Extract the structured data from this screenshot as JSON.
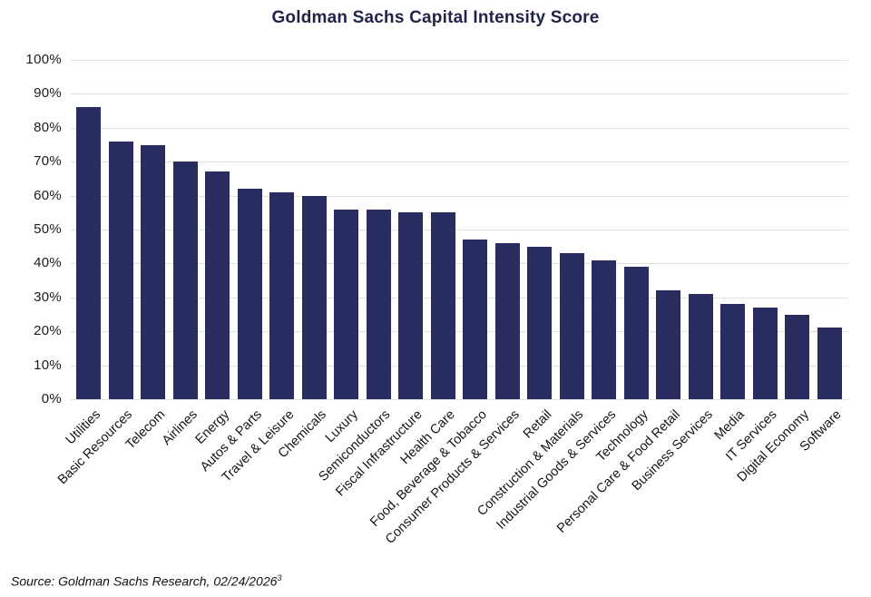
{
  "title": "Goldman Sachs Capital Intensity Score",
  "source": {
    "text": "Source: Goldman Sachs Research, 02/24/2026",
    "superscript": "3"
  },
  "colors": {
    "bar": "#282c5e",
    "title": "#1f2448",
    "grid": "#e2e2e5",
    "axis_text": "#1c1c1c"
  },
  "chart_data": {
    "type": "bar",
    "title": "Goldman Sachs Capital Intensity Score",
    "categories": [
      "Utilities",
      "Basic Resources",
      "Telecom",
      "Airlines",
      "Energy",
      "Autos & Parts",
      "Travel & Leisure",
      "Chemicals",
      "Luxury",
      "Semiconductors",
      "Fiscal Infrastructure",
      "Health Care",
      "Food, Beverage & Tobacco",
      "Consumer Products & Services",
      "Retail",
      "Construction & Materials",
      "Industrial Goods & Services",
      "Technology",
      "Personal Care & Food Retail",
      "Business Services",
      "Media",
      "IT Services",
      "Digital Economy",
      "Software"
    ],
    "values": [
      86,
      76,
      75,
      70,
      67,
      62,
      61,
      60,
      56,
      56,
      55,
      55,
      47,
      46,
      45,
      43,
      41,
      39,
      32,
      31,
      28,
      27,
      25,
      21
    ],
    "xlabel": "",
    "ylabel": "",
    "ylim": [
      0,
      100
    ],
    "yticks": [
      0,
      10,
      20,
      30,
      40,
      50,
      60,
      70,
      80,
      90,
      100
    ],
    "ytick_suffix": "%",
    "grid": "horizontal",
    "legend": "none",
    "bar_color": "#282c5e"
  }
}
